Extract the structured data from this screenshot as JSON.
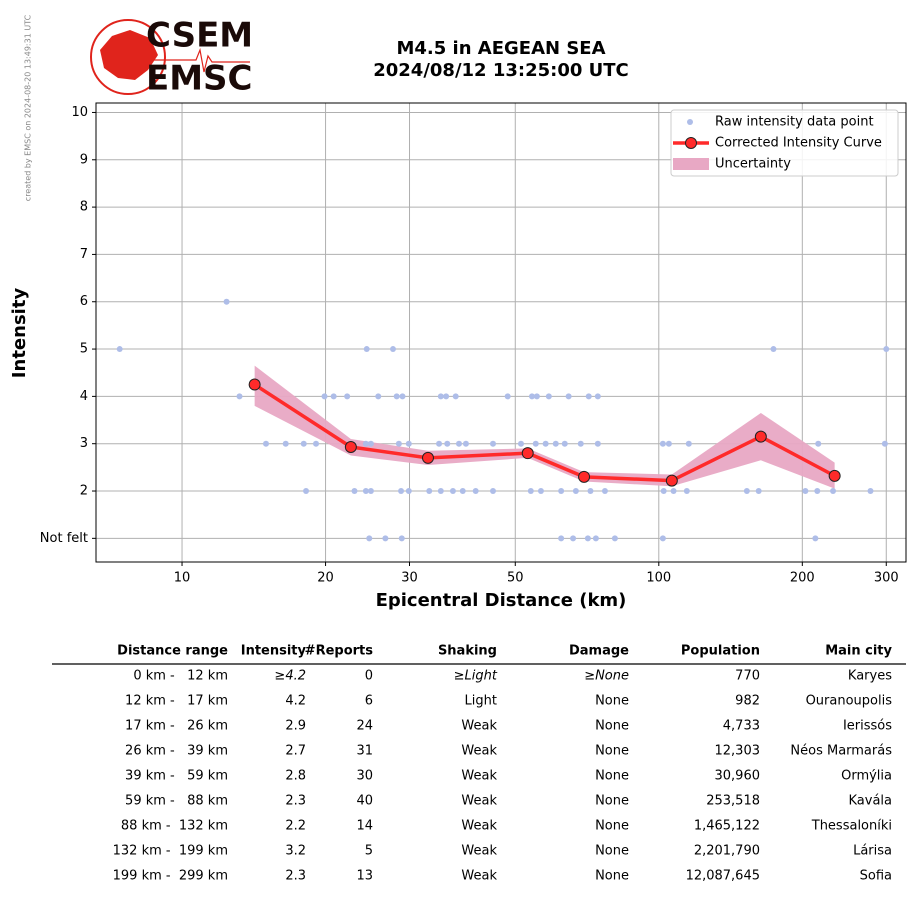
{
  "watermark": "created by EMSC on 2024-08-20 13:49:31 UTC",
  "logo": {
    "top": "CSEM",
    "bottom": "EMSC"
  },
  "chart_data": {
    "type": "line",
    "title": [
      "M4.5 in AEGEAN SEA",
      "2024/08/12 13:25:00 UTC"
    ],
    "xlabel": "Epicentral Distance (km)",
    "ylabel": "Intensity",
    "xscale": "log",
    "grid": true,
    "legend": "upper right",
    "xlim": [
      6.6,
      330
    ],
    "ylim": [
      0.5,
      10.2
    ],
    "xticks": [
      10,
      20,
      30,
      50,
      100,
      200,
      300
    ],
    "yticks": [
      {
        "value": 1,
        "label": "Not felt"
      },
      2,
      3,
      4,
      5,
      6,
      7,
      8,
      9,
      10
    ],
    "series": [
      {
        "name": "Raw intensity data point",
        "color": "#aebde8",
        "mode": "markers",
        "x": [
          7.4,
          24.4,
          27.7,
          174,
          300,
          12.4,
          13.2,
          19.9,
          20.8,
          22.2,
          25.8,
          28.2,
          29.0,
          34.9,
          35.8,
          37.5,
          48.2,
          54.2,
          55.5,
          58.8,
          64.7,
          71.3,
          74.5,
          15.0,
          16.5,
          18.0,
          19.1,
          24.3,
          24.9,
          28.5,
          29.9,
          34.6,
          36.0,
          38.1,
          39.4,
          44.9,
          51.4,
          55.2,
          57.9,
          60.8,
          63.5,
          68.6,
          74.5,
          102,
          105,
          115.6,
          216,
          298,
          18.2,
          23.0,
          24.3,
          24.9,
          28.8,
          29.9,
          33.0,
          34.9,
          37.0,
          38.8,
          41.3,
          44.9,
          53.9,
          56.6,
          62.4,
          67.0,
          71.9,
          77.1,
          102.4,
          107.4,
          114.5,
          153,
          162,
          203,
          215,
          232,
          278,
          24.7,
          26.7,
          28.9,
          62.4,
          66.1,
          71.0,
          73.8,
          80.9,
          102,
          213
        ],
        "values": [
          5,
          5,
          5,
          5,
          5,
          6,
          4,
          4,
          4,
          4,
          4,
          4,
          4,
          4,
          4,
          4,
          4,
          4,
          4,
          4,
          4,
          4,
          4,
          3,
          3,
          3,
          3,
          3,
          3,
          3,
          3,
          3,
          3,
          3,
          3,
          3,
          3,
          3,
          3,
          3,
          3,
          3,
          3,
          3,
          3,
          3,
          3,
          3,
          2,
          2,
          2,
          2,
          2,
          2,
          2,
          2,
          2,
          2,
          2,
          2,
          2,
          2,
          2,
          2,
          2,
          2,
          2,
          2,
          2,
          2,
          2,
          2,
          2,
          2,
          2,
          1,
          1,
          1,
          1,
          1,
          1,
          1,
          1,
          1,
          1
        ]
      },
      {
        "name": "Corrected Intensity Curve",
        "color": "#ff2a2a",
        "mode": "lines+markers",
        "x": [
          14.2,
          22.6,
          32.8,
          53.1,
          69.7,
          106.5,
          163.7,
          233.8
        ],
        "values": [
          4.25,
          2.93,
          2.7,
          2.8,
          2.3,
          2.22,
          3.15,
          2.32
        ]
      }
    ],
    "band": {
      "name": "Uncertainty",
      "color": "#e8a8c4",
      "x": [
        14.2,
        22.6,
        32.8,
        53.1,
        69.7,
        106.5,
        163.7,
        233.8
      ],
      "upper": [
        4.65,
        3.1,
        2.85,
        2.9,
        2.4,
        2.35,
        3.65,
        2.6
      ],
      "lower": [
        3.8,
        2.75,
        2.55,
        2.7,
        2.2,
        2.1,
        2.65,
        2.05
      ]
    }
  },
  "table": {
    "header": [
      "Distance range",
      "Intensity",
      "#Reports",
      "Shaking",
      "Damage",
      "Population",
      "Main city"
    ],
    "rows": [
      [
        "0 km -   12 km",
        "≥4.2",
        "0",
        "≥Light",
        "≥None",
        "770",
        "Karyes"
      ],
      [
        "12 km -   17 km",
        "4.2",
        "6",
        "Light",
        "None",
        "982",
        "Ouranoupolis"
      ],
      [
        "17 km -   26 km",
        "2.9",
        "24",
        "Weak",
        "None",
        "4,733",
        "Ierissós"
      ],
      [
        "26 km -   39 km",
        "2.7",
        "31",
        "Weak",
        "None",
        "12,303",
        "Néos Marmarás"
      ],
      [
        "39 km -   59 km",
        "2.8",
        "30",
        "Weak",
        "None",
        "30,960",
        "Ormýlia"
      ],
      [
        "59 km -   88 km",
        "2.3",
        "40",
        "Weak",
        "None",
        "253,518",
        "Kavála"
      ],
      [
        "88 km -  132 km",
        "2.2",
        "14",
        "Weak",
        "None",
        "1,465,122",
        "Thessaloníki"
      ],
      [
        "132 km -  199 km",
        "3.2",
        "5",
        "Weak",
        "None",
        "2,201,790",
        "Lárisa"
      ],
      [
        "199 km -  299 km",
        "2.3",
        "13",
        "Weak",
        "None",
        "12,087,645",
        "Sofia"
      ]
    ]
  }
}
